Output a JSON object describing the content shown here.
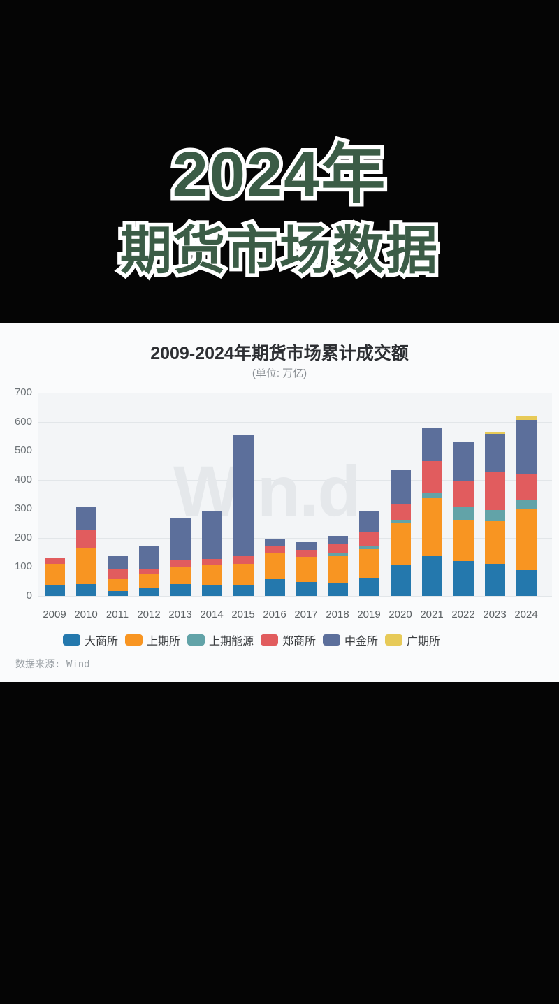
{
  "header": {
    "line1": "2024年",
    "line2": "期货市场数据",
    "title_color": "#3b5c46"
  },
  "panel": {
    "source": "数据来源: Wind",
    "watermark": "Win.d"
  },
  "chart_data": {
    "type": "bar",
    "stacked": true,
    "title": "2009-2024年期货市场累计成交额",
    "subtitle": "(单位: 万亿)",
    "ylim": [
      0,
      700
    ],
    "ytick_interval": 100,
    "yticks": [
      0,
      100,
      200,
      300,
      400,
      500,
      600,
      700
    ],
    "grid": true,
    "legend_position": "bottom",
    "categories": [
      "2009",
      "2010",
      "2011",
      "2012",
      "2013",
      "2014",
      "2015",
      "2016",
      "2017",
      "2018",
      "2019",
      "2020",
      "2021",
      "2022",
      "2023",
      "2024"
    ],
    "series": [
      {
        "name": "大商所",
        "color": "#2478ad",
        "values": [
          37,
          40,
          17,
          30,
          40,
          38,
          36,
          57,
          48,
          46,
          62,
          108,
          136,
          120,
          110,
          90
        ]
      },
      {
        "name": "上期所",
        "color": "#f89522",
        "values": [
          74,
          123,
          43,
          44,
          62,
          67,
          74,
          90,
          86,
          92,
          98,
          142,
          200,
          142,
          148,
          208
        ]
      },
      {
        "name": "上期能源",
        "color": "#62a3a8",
        "values": [
          0,
          0,
          0,
          0,
          0,
          0,
          0,
          0,
          0,
          8,
          14,
          12,
          18,
          44,
          38,
          32
        ]
      },
      {
        "name": "郑商所",
        "color": "#e15c5e",
        "values": [
          19,
          64,
          34,
          21,
          24,
          22,
          26,
          24,
          24,
          32,
          48,
          56,
          110,
          90,
          130,
          88
        ]
      },
      {
        "name": "中金所",
        "color": "#5c6f9b",
        "values": [
          0,
          82,
          44,
          76,
          140,
          163,
          417,
          23,
          28,
          30,
          68,
          116,
          114,
          134,
          132,
          188
        ]
      },
      {
        "name": "广期所",
        "color": "#e7ca58",
        "values": [
          0,
          0,
          0,
          0,
          0,
          0,
          0,
          0,
          0,
          0,
          0,
          0,
          0,
          0,
          6,
          12
        ]
      }
    ]
  }
}
